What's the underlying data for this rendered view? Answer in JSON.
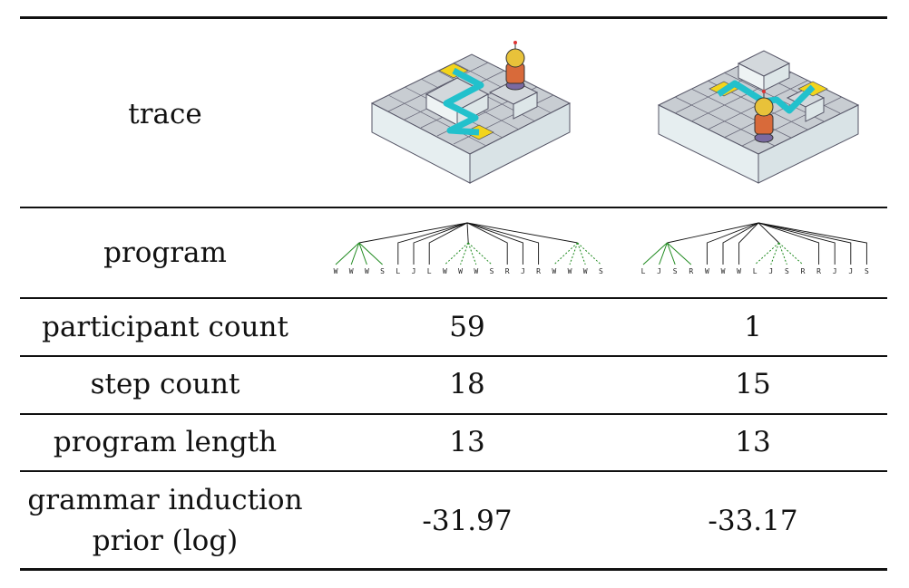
{
  "rows": {
    "trace": {
      "label": "trace"
    },
    "program": {
      "label": "program",
      "left_tokens": [
        "W",
        "W",
        "W",
        "S",
        "L",
        "J",
        "L",
        "W",
        "W",
        "W",
        "S",
        "R",
        "J",
        "R",
        "W",
        "W",
        "W",
        "S"
      ],
      "right_tokens": [
        "L",
        "J",
        "S",
        "R",
        "W",
        "W",
        "W",
        "L",
        "J",
        "S",
        "R",
        "R",
        "J",
        "J",
        "S"
      ]
    },
    "participant_count": {
      "label": "participant count",
      "left": "59",
      "right": "1"
    },
    "step_count": {
      "label": "step count",
      "left": "18",
      "right": "15"
    },
    "program_length": {
      "label": "program length",
      "left": "13",
      "right": "13"
    },
    "prior": {
      "label_line1": "grammar induction",
      "label_line2": "prior (log)",
      "left": "-31.97",
      "right": "-33.17"
    }
  },
  "colors": {
    "cyan_path": "#22c1cc",
    "yellow_tile": "#f3d41c",
    "tile_top": "#c8cdd2",
    "tile_side": "#e6eef0",
    "green_subroutine": "#1f8a1f"
  },
  "icons": {
    "character": "robot-icon"
  }
}
